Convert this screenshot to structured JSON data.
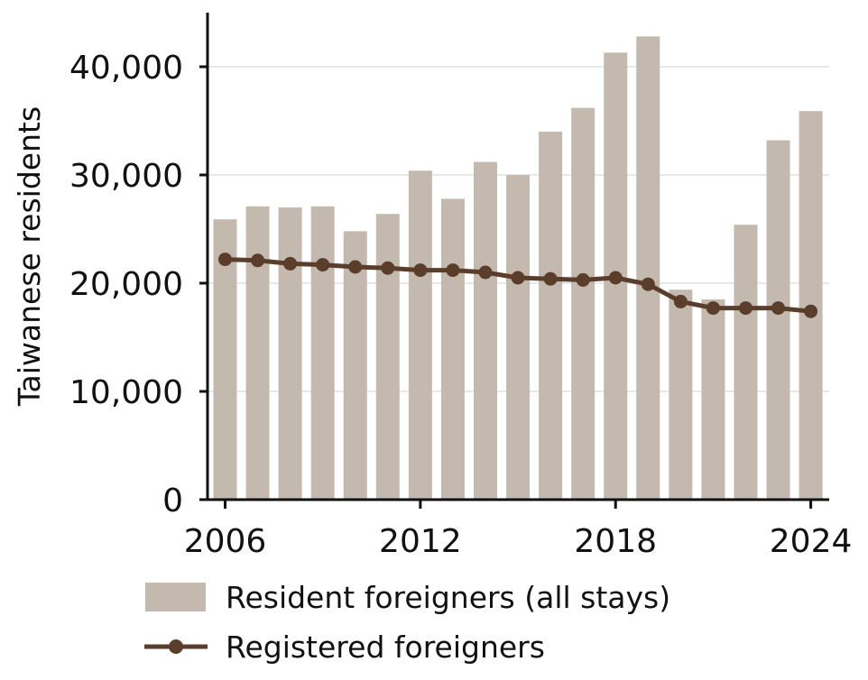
{
  "chart_data": {
    "type": "bar",
    "title": "",
    "xlabel": "",
    "ylabel": "Taiwanese residents",
    "ylim": [
      0,
      45000
    ],
    "grid": "horizontal",
    "legend_position": "bottom",
    "x": [
      2006,
      2007,
      2008,
      2009,
      2010,
      2011,
      2012,
      2013,
      2014,
      2015,
      2016,
      2017,
      2018,
      2019,
      2020,
      2021,
      2022,
      2023,
      2024
    ],
    "x_ticks": [
      "2006",
      "2012",
      "2018",
      "2024"
    ],
    "x_tick_values": [
      2006,
      2012,
      2018,
      2024
    ],
    "y_ticks": [
      "0",
      "10,000",
      "20,000",
      "30,000",
      "40,000"
    ],
    "y_tick_values": [
      0,
      10000,
      20000,
      30000,
      40000
    ],
    "series": [
      {
        "name": "Resident foreigners (all stays)",
        "type": "bar",
        "color": "#c4b9ae",
        "values": [
          25900,
          27100,
          27000,
          27100,
          24800,
          26400,
          30400,
          27800,
          31200,
          30000,
          34000,
          36200,
          41300,
          42800,
          19400,
          18500,
          25400,
          33200,
          35900
        ]
      },
      {
        "name": "Registered foreigners",
        "type": "line",
        "color": "#5b3d2b",
        "values": [
          22200,
          22100,
          21800,
          21700,
          21500,
          21400,
          21200,
          21200,
          21000,
          20500,
          20400,
          20300,
          20500,
          19900,
          18300,
          17700,
          17700,
          17700,
          17400
        ]
      }
    ]
  }
}
